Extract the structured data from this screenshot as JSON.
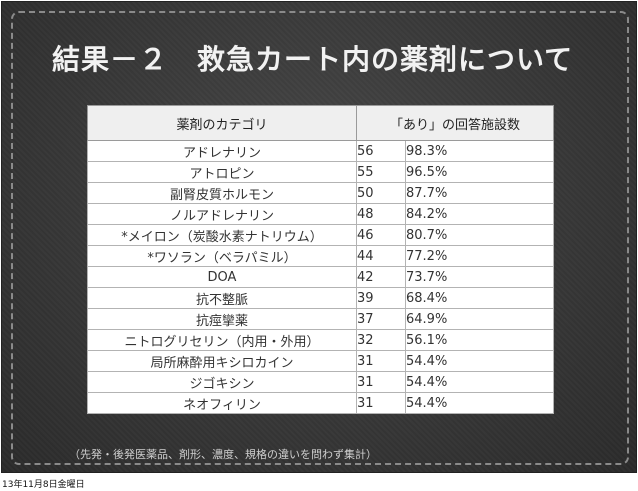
{
  "slide_title": "結果－２　救急カート内の薬剤について",
  "table": {
    "header_category": "薬剤のカテゴリ",
    "header_answer": "「あり」の回答施設数",
    "rows": [
      {
        "category": "アドレナリン",
        "count": "56",
        "percent": "98.3%"
      },
      {
        "category": "アトロピン",
        "count": "55",
        "percent": "96.5%"
      },
      {
        "category": "副腎皮質ホルモン",
        "count": "50",
        "percent": "87.7%"
      },
      {
        "category": "ノルアドレナリン",
        "count": "48",
        "percent": "84.2%"
      },
      {
        "category": "*メイロン（炭酸水素ナトリウム）",
        "count": "46",
        "percent": "80.7%"
      },
      {
        "category": "*ワソラン（ベラパミル）",
        "count": "44",
        "percent": "77.2%"
      },
      {
        "category": "DOA",
        "count": "42",
        "percent": "73.7%"
      },
      {
        "category": "抗不整脈",
        "count": "39",
        "percent": "68.4%"
      },
      {
        "category": "抗痙攣薬",
        "count": "37",
        "percent": "64.9%"
      },
      {
        "category": "ニトログリセリン（内用・外用）",
        "count": "32",
        "percent": "56.1%"
      },
      {
        "category": "局所麻酔用キシロカイン",
        "count": "31",
        "percent": "54.4%"
      },
      {
        "category": "ジゴキシン",
        "count": "31",
        "percent": "54.4%"
      },
      {
        "category": "ネオフィリン",
        "count": "31",
        "percent": "54.4%"
      }
    ]
  },
  "footnote": "（先発・後発医薬品、剤形、濃度、規格の違いを問わず集計）",
  "date_stamp": "13年11月8日金曜日"
}
